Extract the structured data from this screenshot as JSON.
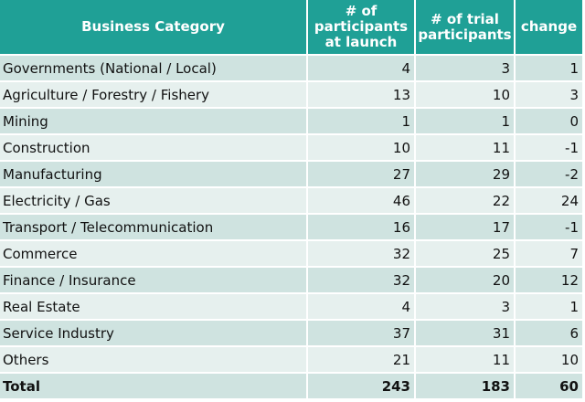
{
  "table": {
    "headers": [
      "Business Category",
      "# of participants at launch",
      "# of trial participants",
      "change"
    ],
    "rows": [
      {
        "category": "Governments (National / Local)",
        "launch": "4",
        "trial": "3",
        "change": "1"
      },
      {
        "category": "Agriculture / Forestry / Fishery",
        "launch": "13",
        "trial": "10",
        "change": "3"
      },
      {
        "category": "Mining",
        "launch": "1",
        "trial": "1",
        "change": "0"
      },
      {
        "category": "Construction",
        "launch": "10",
        "trial": "11",
        "change": "-1"
      },
      {
        "category": "Manufacturing",
        "launch": "27",
        "trial": "29",
        "change": "-2"
      },
      {
        "category": "Electricity / Gas",
        "launch": "46",
        "trial": "22",
        "change": "24"
      },
      {
        "category": "Transport / Telecommunication",
        "launch": "16",
        "trial": "17",
        "change": "-1"
      },
      {
        "category": "Commerce",
        "launch": "32",
        "trial": "25",
        "change": "7"
      },
      {
        "category": "Finance / Insurance",
        "launch": "32",
        "trial": "20",
        "change": "12"
      },
      {
        "category": "Real Estate",
        "launch": "4",
        "trial": "3",
        "change": "1"
      },
      {
        "category": "Service Industry",
        "launch": "37",
        "trial": "31",
        "change": "6"
      },
      {
        "category": "Others",
        "launch": "21",
        "trial": "11",
        "change": "10"
      }
    ],
    "total": {
      "category": "Total",
      "launch": "243",
      "trial": "183",
      "change": "60"
    }
  },
  "colors": {
    "header_bg": "#1fa096",
    "row_odd": "#cfe3e0",
    "row_even": "#e6f0ee"
  }
}
